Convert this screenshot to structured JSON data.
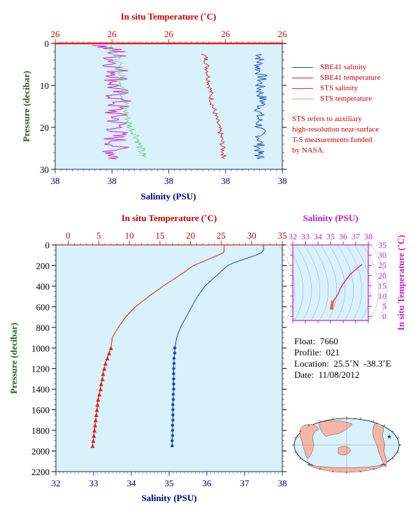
{
  "colors": {
    "plot_bg": "#d8f1fb",
    "salinity": "#1f3fbf",
    "temperature": "#e02020",
    "sts_salinity": "#d21dd2",
    "sts_temperature": "#7fd07f",
    "temp_axis_text": "#cc0000",
    "sal_axis_text": "#00008b",
    "pressure_axis_text": "#2a5c2a",
    "ts_axis_text": "#c020c0"
  },
  "chart_data": [
    {
      "type": "line",
      "panel": "near-surface profile",
      "top_axis_label": "In situ Temperature (˚C)",
      "top_tick_labels": [
        "26",
        "26",
        "26",
        "26",
        "26"
      ],
      "bottom_axis_label": "Salinity (PSU)",
      "bottom_tick_labels": [
        "38",
        "38",
        "38",
        "38",
        "38"
      ],
      "ylabel": "Pressure (decibar)",
      "ylim": [
        30,
        0
      ],
      "y_ticks": [
        0,
        10,
        20,
        30
      ],
      "legend": [
        {
          "name": "SBE41 salinity",
          "color": "#1f3fbf"
        },
        {
          "name": "SBE41 temperature",
          "color": "#e02020"
        },
        {
          "name": "STS salinity",
          "color": "#d21dd2"
        },
        {
          "name": "STS temperature",
          "color": "#7fd07f"
        }
      ],
      "annotation": [
        "STS refers to auxiliary",
        "high-resolution near-surface",
        "T-S measurements funded",
        "by NASA."
      ],
      "series": [
        {
          "name": "SBE41 salinity",
          "pressure": [
            2.5,
            4,
            6,
            8,
            10,
            12,
            14,
            16,
            18,
            20,
            22,
            24,
            26,
            27.5
          ],
          "x_frac": [
            0.905,
            0.9,
            0.895,
            0.91,
            0.9,
            0.905,
            0.915,
            0.9,
            0.895,
            0.9,
            0.905,
            0.9,
            0.895,
            0.9
          ]
        },
        {
          "name": "SBE41 temperature",
          "pressure": [
            2.5,
            4,
            6,
            8,
            10,
            12,
            14,
            16,
            18,
            20,
            22,
            24,
            26,
            27.5
          ],
          "x_frac": [
            0.655,
            0.665,
            0.67,
            0.675,
            0.68,
            0.685,
            0.69,
            0.7,
            0.71,
            0.72,
            0.73,
            0.735,
            0.74,
            0.745
          ]
        },
        {
          "name": "STS salinity",
          "pressure": [
            0.5,
            2,
            4,
            6,
            8,
            10,
            12,
            14,
            16,
            18,
            20,
            22,
            24,
            26,
            27.5
          ],
          "x_frac": [
            0.2,
            0.27,
            0.26,
            0.27,
            0.28,
            0.26,
            0.27,
            0.28,
            0.26,
            0.27,
            0.28,
            0.26,
            0.27,
            0.26,
            0.27
          ]
        },
        {
          "name": "STS temperature",
          "pressure": [
            0.5,
            2,
            4,
            6,
            8,
            10,
            12,
            14,
            16,
            18,
            20,
            22,
            24,
            26,
            27
          ],
          "x_frac": [
            0.24,
            0.26,
            0.27,
            0.28,
            0.29,
            0.3,
            0.3,
            0.31,
            0.31,
            0.32,
            0.33,
            0.36,
            0.37,
            0.38,
            0.39
          ]
        }
      ]
    },
    {
      "type": "line",
      "panel": "full-depth profile",
      "top_axis_label": "In situ Temperature (˚C)",
      "top_ticks": [
        0,
        5,
        10,
        15,
        20,
        25,
        30,
        35
      ],
      "xlim_temperature": [
        -2,
        35
      ],
      "bottom_axis_label": "Salinity (PSU)",
      "bottom_ticks": [
        32,
        33,
        34,
        35,
        36,
        37,
        38
      ],
      "xlim_salinity": [
        32,
        38
      ],
      "ylabel": "Pressure (decibar)",
      "ylim": [
        2200,
        0
      ],
      "y_ticks": [
        0,
        200,
        400,
        600,
        800,
        1000,
        1200,
        1400,
        1600,
        1800,
        2000,
        2200
      ],
      "series": [
        {
          "name": "Salinity",
          "pressure": [
            0,
            25,
            50,
            75,
            100,
            125,
            150,
            175,
            200,
            250,
            300,
            350,
            400,
            500,
            600,
            700,
            800,
            900,
            1000,
            1050,
            1100,
            1150,
            1200,
            1250,
            1300,
            1350,
            1400,
            1450,
            1500,
            1550,
            1600,
            1650,
            1700,
            1750,
            1800,
            1850,
            1900,
            1950
          ],
          "values": [
            37.5,
            37.5,
            37.5,
            37.45,
            37.3,
            37.1,
            36.9,
            36.7,
            36.55,
            36.4,
            36.25,
            36.1,
            35.95,
            35.75,
            35.6,
            35.45,
            35.3,
            35.2,
            35.15,
            35.15,
            35.13,
            35.13,
            35.12,
            35.12,
            35.12,
            35.12,
            35.12,
            35.11,
            35.11,
            35.1,
            35.1,
            35.1,
            35.1,
            35.09,
            35.09,
            35.09,
            35.08,
            35.08
          ]
        },
        {
          "name": "Temperature",
          "pressure": [
            0,
            25,
            50,
            75,
            100,
            125,
            150,
            175,
            200,
            250,
            300,
            350,
            400,
            500,
            600,
            700,
            800,
            900,
            1000,
            1050,
            1100,
            1150,
            1200,
            1250,
            1300,
            1350,
            1400,
            1450,
            1500,
            1550,
            1600,
            1650,
            1700,
            1750,
            1800,
            1850,
            1900,
            1950
          ],
          "values": [
            25.5,
            25.5,
            25.5,
            25.4,
            24.5,
            23.5,
            22.5,
            21.5,
            20.5,
            19.3,
            18.1,
            16.8,
            15.5,
            13.2,
            11.0,
            9.4,
            8.2,
            7.2,
            7.0,
            6.7,
            6.4,
            6.1,
            5.9,
            5.7,
            5.6,
            5.4,
            5.3,
            5.1,
            4.9,
            4.8,
            4.7,
            4.6,
            4.5,
            4.4,
            4.3,
            4.2,
            4.1,
            4.0
          ]
        }
      ],
      "marker_start_pressure": 1000
    },
    {
      "type": "line",
      "panel": "T-S diagram",
      "top_axis_label": "Salinity (PSU)",
      "x_ticks": [
        32,
        33,
        34,
        35,
        36,
        37,
        38
      ],
      "xlim": [
        32,
        38
      ],
      "ylabel": "In situ Temperature (˚C)",
      "y_ticks": [
        0,
        5,
        10,
        15,
        20,
        25,
        30,
        35
      ],
      "ylim": [
        -2,
        35
      ],
      "series": [
        {
          "name": "T-S",
          "salinity": [
            35.08,
            35.1,
            35.12,
            35.15,
            35.2,
            35.3,
            35.45,
            35.6,
            35.75,
            35.95,
            36.25,
            36.55,
            37.1,
            37.5
          ],
          "temperature": [
            4.0,
            4.5,
            5.5,
            7.0,
            7.2,
            8.2,
            9.4,
            11.0,
            13.2,
            15.5,
            18.1,
            20.5,
            23.5,
            25.5
          ]
        }
      ]
    }
  ],
  "info": {
    "float_label": "Float:",
    "float_value": "7660",
    "profile_label": "Profile:",
    "profile_value": "021",
    "location_label": "Location:",
    "location_value": "25.5˚N  -38.3˚E",
    "date_label": "Date:",
    "date_value": "11/08/2012"
  },
  "map": {
    "marker_icon": "star-icon",
    "float_lat": 25.5,
    "float_lon": -38.3
  }
}
